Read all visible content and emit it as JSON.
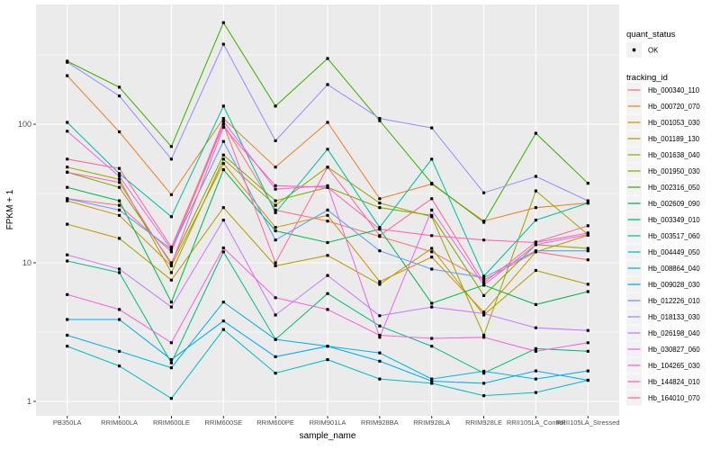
{
  "legend": {
    "quant_status_title": "quant_status",
    "ok_label": "OK",
    "tracking_id_title": "tracking_id"
  },
  "colors": {
    "panel_background": "#EBEBEB",
    "grid": "#FFFFFF",
    "tick_mark": "#333333",
    "tick_label": "#4D4D4D",
    "point": "#000000",
    "legend_key_background": "#F2F2F2"
  },
  "chart_data": {
    "type": "line",
    "title": "",
    "xlabel": "sample_name",
    "ylabel": "FPKM + 1",
    "y_scale": "log10",
    "yticks": [
      "1",
      "10",
      "100"
    ],
    "ytick_values": [
      1,
      10,
      100
    ],
    "yminor_values": [
      3.1623,
      31.623,
      316.23
    ],
    "ylim": [
      1,
      700
    ],
    "grid": true,
    "legend_position": "right",
    "quant_status": "OK",
    "categories": [
      "PB350LA",
      "RRIM600LA",
      "RRIM600LE",
      "RRIM600SE",
      "RRIM600PE",
      "RRIM901LA",
      "RRIM928BA",
      "RRIM928LA",
      "RRIM928LE",
      "RRII105LA_Control",
      "RRII105LA_Stressed"
    ],
    "series": [
      {
        "name": "Hb_000340_110",
        "color": "#F8766D",
        "values": [
          29,
          26,
          12,
          100,
          24,
          20,
          15.5,
          12,
          7.5,
          12,
          10.5
        ]
      },
      {
        "name": "Hb_000720_070",
        "color": "#E88526",
        "values": [
          224,
          88,
          31,
          110,
          49,
          103,
          29,
          37,
          20,
          25,
          27
        ]
      },
      {
        "name": "Hb_001053_030",
        "color": "#D39200",
        "values": [
          28,
          22,
          9.5,
          52,
          18,
          22,
          7.3,
          11,
          4.4,
          12,
          15.8
        ]
      },
      {
        "name": "Hb_001189_130",
        "color": "#B79F00",
        "values": [
          19,
          15,
          7.5,
          25,
          9.5,
          11.3,
          7.0,
          12.7,
          4.2,
          8.8,
          7.0
        ]
      },
      {
        "name": "Hb_001638_040",
        "color": "#A3A500",
        "values": [
          49,
          40,
          8.5,
          56,
          26,
          49,
          27,
          21.5,
          3.0,
          33,
          16
        ]
      },
      {
        "name": "Hb_001950_030",
        "color": "#7CAE00",
        "values": [
          45,
          35,
          10,
          60,
          28,
          35,
          25,
          22,
          5.8,
          13.5,
          12.7
        ]
      },
      {
        "name": "Hb_002316_050",
        "color": "#39B600",
        "values": [
          285,
          185,
          69,
          540,
          135,
          298,
          106,
          37.5,
          19.6,
          86,
          37.5
        ]
      },
      {
        "name": "Hb_002609_090",
        "color": "#00BB4E",
        "values": [
          35,
          28,
          5.2,
          47,
          17,
          14,
          17.5,
          5.1,
          6.9,
          5.0,
          6.2
        ]
      },
      {
        "name": "Hb_003349_010",
        "color": "#00BF7D",
        "values": [
          10.3,
          8.5,
          1.9,
          12,
          2.8,
          6.0,
          3.5,
          2.5,
          1.6,
          2.4,
          2.3
        ]
      },
      {
        "name": "Hb_003517_060",
        "color": "#00C1A3",
        "values": [
          103,
          44,
          21.5,
          135,
          23,
          66,
          18,
          56,
          8.0,
          20.3,
          27
        ]
      },
      {
        "name": "Hb_004449_050",
        "color": "#00BFC4",
        "values": [
          2.5,
          1.8,
          1.05,
          3.3,
          1.6,
          2.0,
          1.45,
          1.35,
          1.1,
          1.16,
          1.42
        ]
      },
      {
        "name": "Hb_008864_040",
        "color": "#00B4E8",
        "values": [
          3.0,
          2.3,
          1.75,
          5.2,
          2.8,
          2.5,
          2.24,
          1.45,
          1.65,
          1.45,
          1.66
        ]
      },
      {
        "name": "Hb_009028_030",
        "color": "#00A9FF",
        "values": [
          3.9,
          3.9,
          2.0,
          3.8,
          2.1,
          2.5,
          1.95,
          1.4,
          1.35,
          1.66,
          1.42
        ]
      },
      {
        "name": "Hb_012226_010",
        "color": "#619CFF",
        "values": [
          29,
          24,
          12.5,
          75,
          14.6,
          24,
          12.2,
          9.0,
          7.8,
          12.2,
          12.2
        ]
      },
      {
        "name": "Hb_018133_030",
        "color": "#9590FF",
        "values": [
          280,
          160,
          56,
          378,
          76,
          193,
          110,
          94,
          32,
          42,
          28
        ]
      },
      {
        "name": "Hb_026198_040",
        "color": "#C77CFF",
        "values": [
          11.4,
          9.0,
          4.8,
          20.3,
          4.2,
          8.1,
          4.15,
          4.8,
          4.3,
          3.4,
          3.25
        ]
      },
      {
        "name": "Hb_030827_060",
        "color": "#E76BF3",
        "values": [
          89,
          42,
          12.5,
          105,
          34,
          36,
          2.9,
          24,
          6.9,
          13.5,
          16
        ]
      },
      {
        "name": "Hb_104265_030",
        "color": "#FA62DB",
        "values": [
          5.9,
          4.6,
          2.65,
          12.8,
          5.6,
          4.6,
          3.0,
          2.85,
          2.9,
          2.3,
          2.65
        ]
      },
      {
        "name": "Hb_144824_010",
        "color": "#FF64B8",
        "values": [
          45,
          38,
          9.7,
          95,
          36,
          35,
          17.5,
          15.7,
          14.6,
          14.0,
          16.4
        ]
      },
      {
        "name": "Hb_164010_070",
        "color": "#FF699C",
        "values": [
          56,
          48,
          13,
          100,
          10,
          49,
          15.7,
          29,
          7.2,
          14.1,
          18.5
        ]
      }
    ]
  }
}
